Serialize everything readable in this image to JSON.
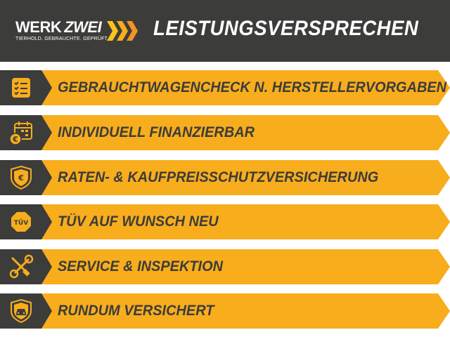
{
  "header": {
    "logo": {
      "main": "WERK",
      "accent": "ZWEI",
      "tagline": "TIERHOLD. GEBRAUCHTE. GEPRÜFT."
    },
    "title": "LEISTUNGSVERSPRECHEN"
  },
  "colors": {
    "dark": "#3c3c3b",
    "yellow": "#f8ad1d"
  },
  "items": [
    {
      "label": "GEBRAUCHTWAGENCHECK N. HERSTELLERVORGABEN",
      "icon": "checklist-icon"
    },
    {
      "label": "INDIVIDUELL FINANZIERBAR",
      "icon": "calendar-euro-icon"
    },
    {
      "label": "RATEN- & KAUFPREISSCHUTZVERSICHERUNG",
      "icon": "shield-euro-icon",
      "icon_text": "€"
    },
    {
      "label": "TÜV AUF WUNSCH NEU",
      "icon": "tuv-badge-icon",
      "icon_text": "TÜV"
    },
    {
      "label": "SERVICE & INSPEKTION",
      "icon": "wrench-screwdriver-icon"
    },
    {
      "label": "RUNDUM VERSICHERT",
      "icon": "shield-car-icon"
    }
  ]
}
